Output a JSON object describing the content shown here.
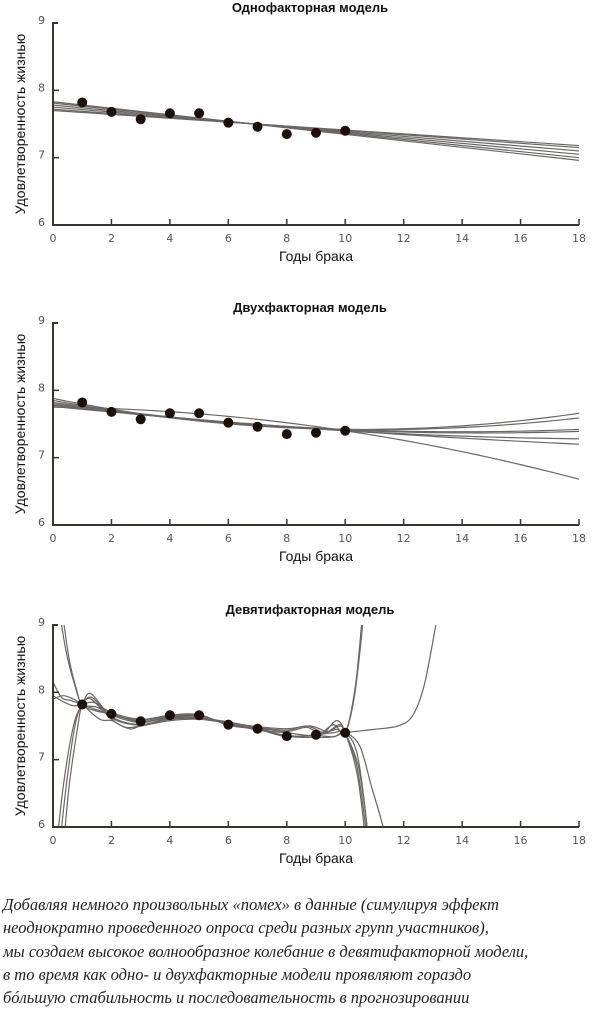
{
  "chart_data": [
    {
      "type": "line",
      "title": "Однофакторная модель",
      "xlabel": "Годы брака",
      "ylabel": "Удовлетворенность жизнью",
      "xlim": [
        0,
        18
      ],
      "ylim": [
        6,
        9
      ],
      "xticks": [
        0,
        2,
        4,
        6,
        8,
        10,
        12,
        14,
        16,
        18
      ],
      "yticks": [
        6,
        7,
        8,
        9
      ],
      "grid": false,
      "points": {
        "x": [
          1,
          2,
          3,
          4,
          5,
          6,
          7,
          8,
          9,
          10
        ],
        "y": [
          7.82,
          7.68,
          7.57,
          7.66,
          7.66,
          7.52,
          7.46,
          7.35,
          7.37,
          7.4
        ]
      },
      "fit_degree": 1,
      "fits": [
        [
          [
            0,
            7.83
          ],
          [
            10,
            7.35
          ],
          [
            18,
            6.96
          ]
        ],
        [
          [
            0,
            7.81
          ],
          [
            10,
            7.36
          ],
          [
            18,
            7.0
          ]
        ],
        [
          [
            0,
            7.78
          ],
          [
            10,
            7.37
          ],
          [
            18,
            7.05
          ]
        ],
        [
          [
            0,
            7.75
          ],
          [
            10,
            7.38
          ],
          [
            18,
            7.1
          ]
        ],
        [
          [
            0,
            7.72
          ],
          [
            10,
            7.39
          ],
          [
            18,
            7.15
          ]
        ],
        [
          [
            0,
            7.7
          ],
          [
            10,
            7.4
          ],
          [
            18,
            7.18
          ]
        ]
      ],
      "line_color": "#6b6663",
      "point_color": "#1e0f08"
    },
    {
      "type": "line",
      "title": "Двухфакторная модель",
      "xlabel": "Годы брака",
      "ylabel": "Удовлетворенность жизнью",
      "xlim": [
        0,
        18
      ],
      "ylim": [
        6,
        9
      ],
      "xticks": [
        0,
        2,
        4,
        6,
        8,
        10,
        12,
        14,
        16,
        18
      ],
      "yticks": [
        6,
        7,
        8,
        9
      ],
      "grid": false,
      "points": {
        "x": [
          1,
          2,
          3,
          4,
          5,
          6,
          7,
          8,
          9,
          10
        ],
        "y": [
          7.82,
          7.68,
          7.57,
          7.66,
          7.66,
          7.52,
          7.46,
          7.35,
          7.37,
          7.4
        ]
      },
      "fit_degree": 2,
      "fits": [
        [
          [
            0,
            7.88
          ],
          [
            10,
            7.42
          ],
          [
            18,
            7.66
          ]
        ],
        [
          [
            0,
            7.85
          ],
          [
            10,
            7.42
          ],
          [
            18,
            7.59
          ]
        ],
        [
          [
            0,
            7.82
          ],
          [
            10,
            7.42
          ],
          [
            18,
            7.42
          ]
        ],
        [
          [
            0,
            7.8
          ],
          [
            10,
            7.41
          ],
          [
            18,
            7.39
          ]
        ],
        [
          [
            0,
            7.78
          ],
          [
            10,
            7.4
          ],
          [
            18,
            7.28
          ]
        ],
        [
          [
            0,
            7.76
          ],
          [
            10,
            7.4
          ],
          [
            18,
            7.2
          ]
        ],
        [
          [
            0,
            7.75
          ],
          [
            10,
            7.4
          ],
          [
            18,
            6.68
          ]
        ]
      ],
      "line_color": "#6b6663",
      "point_color": "#1e0f08"
    },
    {
      "type": "line",
      "title": "Девятифакторная модель",
      "xlabel": "Годы брака",
      "ylabel": "Удовлетворенность жизнью",
      "xlim": [
        0,
        18
      ],
      "ylim": [
        6,
        9
      ],
      "xticks": [
        0,
        2,
        4,
        6,
        8,
        10,
        12,
        14,
        16,
        18
      ],
      "yticks": [
        6,
        7,
        8,
        9
      ],
      "grid": false,
      "points": {
        "x": [
          1,
          2,
          3,
          4,
          5,
          6,
          7,
          8,
          9,
          10
        ],
        "y": [
          7.82,
          7.68,
          7.57,
          7.66,
          7.66,
          7.52,
          7.46,
          7.35,
          7.37,
          7.4
        ]
      },
      "fit_degree": 9,
      "fits": [
        [
          [
            0.15,
            9.4
          ],
          [
            0.45,
            8.6
          ],
          [
            0.75,
            8.1
          ],
          [
            1,
            7.82
          ],
          [
            1.5,
            7.72
          ],
          [
            2,
            7.68
          ],
          [
            3,
            7.56
          ],
          [
            4,
            7.64
          ],
          [
            5,
            7.65
          ],
          [
            6,
            7.53
          ],
          [
            7,
            7.45
          ],
          [
            8,
            7.36
          ],
          [
            9,
            7.36
          ],
          [
            9.7,
            7.45
          ],
          [
            10,
            7.4
          ],
          [
            10.3,
            7.9
          ],
          [
            10.55,
            8.8
          ],
          [
            10.7,
            9.6
          ]
        ],
        [
          [
            0.25,
            9.4
          ],
          [
            0.55,
            8.5
          ],
          [
            0.8,
            8.05
          ],
          [
            1,
            7.82
          ],
          [
            1.5,
            7.78
          ],
          [
            2,
            7.66
          ],
          [
            3,
            7.55
          ],
          [
            4,
            7.63
          ],
          [
            5,
            7.64
          ],
          [
            6,
            7.54
          ],
          [
            7,
            7.44
          ],
          [
            8,
            7.4
          ],
          [
            9,
            7.36
          ],
          [
            9.6,
            7.52
          ],
          [
            10,
            7.4
          ],
          [
            10.35,
            8.1
          ],
          [
            10.6,
            9.2
          ],
          [
            10.75,
            9.8
          ]
        ],
        [
          [
            0.05,
            5.4
          ],
          [
            0.35,
            6.6
          ],
          [
            0.7,
            7.5
          ],
          [
            1,
            7.82
          ],
          [
            1.3,
            7.98
          ],
          [
            2,
            7.64
          ],
          [
            3,
            7.52
          ],
          [
            4,
            7.62
          ],
          [
            5,
            7.62
          ],
          [
            6,
            7.55
          ],
          [
            7,
            7.47
          ],
          [
            8,
            7.42
          ],
          [
            8.7,
            7.48
          ],
          [
            9.2,
            7.38
          ],
          [
            9.7,
            7.58
          ],
          [
            10,
            7.4
          ],
          [
            10.4,
            6.8
          ],
          [
            10.65,
            6.0
          ],
          [
            10.8,
            5.4
          ]
        ],
        [
          [
            0.15,
            5.4
          ],
          [
            0.45,
            6.6
          ],
          [
            0.75,
            7.5
          ],
          [
            1,
            7.82
          ],
          [
            1.35,
            7.92
          ],
          [
            2,
            7.62
          ],
          [
            3,
            7.51
          ],
          [
            4,
            7.61
          ],
          [
            5,
            7.62
          ],
          [
            6,
            7.56
          ],
          [
            7,
            7.48
          ],
          [
            8,
            7.44
          ],
          [
            8.7,
            7.5
          ],
          [
            9.3,
            7.4
          ],
          [
            9.8,
            7.52
          ],
          [
            10,
            7.4
          ],
          [
            10.4,
            6.9
          ],
          [
            10.7,
            6.0
          ],
          [
            10.85,
            5.4
          ]
        ],
        [
          [
            0.3,
            5.4
          ],
          [
            0.55,
            6.6
          ],
          [
            0.85,
            7.5
          ],
          [
            1,
            7.82
          ],
          [
            1.3,
            7.9
          ],
          [
            2,
            7.6
          ],
          [
            2.6,
            7.46
          ],
          [
            3,
            7.5
          ],
          [
            4,
            7.6
          ],
          [
            5,
            7.61
          ],
          [
            6,
            7.55
          ],
          [
            7,
            7.49
          ],
          [
            8,
            7.46
          ],
          [
            8.8,
            7.5
          ],
          [
            9.4,
            7.42
          ],
          [
            9.8,
            7.5
          ],
          [
            10,
            7.4
          ],
          [
            10.45,
            6.9
          ],
          [
            10.75,
            6.0
          ],
          [
            10.9,
            5.4
          ]
        ],
        [
          [
            0,
            8.15
          ],
          [
            0.3,
            7.92
          ],
          [
            0.6,
            7.88
          ],
          [
            1,
            7.82
          ],
          [
            1.5,
            7.74
          ],
          [
            2,
            7.67
          ],
          [
            3,
            7.58
          ],
          [
            4,
            7.65
          ],
          [
            5,
            7.66
          ],
          [
            6,
            7.52
          ],
          [
            7,
            7.46
          ],
          [
            8,
            7.35
          ],
          [
            9,
            7.36
          ],
          [
            9.6,
            7.34
          ],
          [
            10,
            7.4
          ],
          [
            10.5,
            7.2
          ],
          [
            10.9,
            6.6
          ],
          [
            11.3,
            6.0
          ],
          [
            11.5,
            5.6
          ]
        ],
        [
          [
            0,
            7.9
          ],
          [
            0.35,
            7.95
          ],
          [
            0.7,
            7.9
          ],
          [
            1,
            7.82
          ],
          [
            1.6,
            7.6
          ],
          [
            2,
            7.58
          ],
          [
            2.5,
            7.48
          ],
          [
            3,
            7.5
          ],
          [
            4,
            7.58
          ],
          [
            5,
            7.6
          ],
          [
            6,
            7.54
          ],
          [
            7,
            7.47
          ],
          [
            8,
            7.35
          ],
          [
            9,
            7.33
          ],
          [
            9.6,
            7.34
          ],
          [
            10,
            7.4
          ],
          [
            11,
            7.45
          ],
          [
            11.8,
            7.5
          ],
          [
            12.3,
            7.65
          ],
          [
            12.7,
            8.1
          ],
          [
            13.1,
            9.0
          ],
          [
            13.3,
            9.5
          ]
        ],
        [
          [
            0,
            7.95
          ],
          [
            0.4,
            7.85
          ],
          [
            0.7,
            7.8
          ],
          [
            1,
            7.82
          ],
          [
            1.4,
            7.85
          ],
          [
            2,
            7.7
          ],
          [
            3,
            7.6
          ],
          [
            4,
            7.66
          ],
          [
            5,
            7.67
          ],
          [
            6,
            7.51
          ],
          [
            7,
            7.45
          ],
          [
            8,
            7.34
          ],
          [
            9,
            7.37
          ],
          [
            9.6,
            7.4
          ],
          [
            10,
            7.4
          ],
          [
            10.4,
            7.1
          ],
          [
            10.7,
            6.2
          ],
          [
            10.85,
            5.4
          ]
        ]
      ],
      "line_color": "#6b6663",
      "point_color": "#1e0f08"
    }
  ],
  "caption": {
    "lines": [
      "Добавляя немного произвольных «помех» в данные (симулируя эффект",
      "неоднократно проведенного опроса среди разных групп участников),",
      "мы создаем высокое волнообразное колебание в девятифакторной модели,",
      "в то время как одно- и двухфакторные модели проявляют гораздо",
      "бóльшую стабильность и последовательность в прогнозировании"
    ]
  }
}
